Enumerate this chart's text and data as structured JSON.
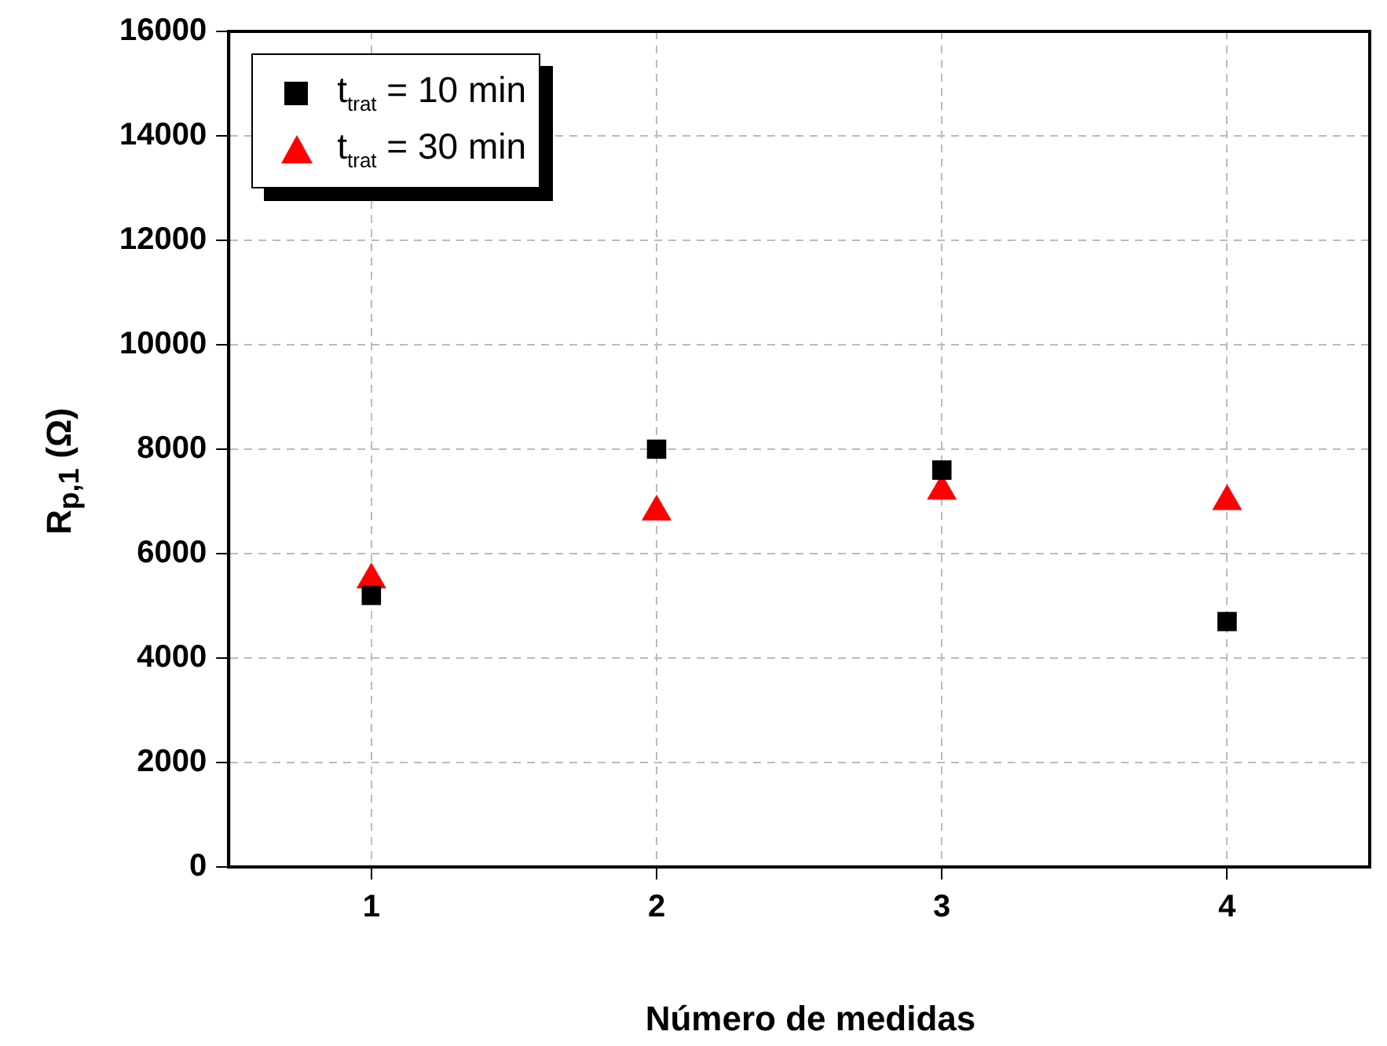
{
  "chart_data": {
    "type": "scatter",
    "xlabel": "Número de medidas",
    "ylabel": "R$_{p,1}$ (Ω)",
    "x": [
      1,
      2,
      3,
      4
    ],
    "series": [
      {
        "name": "t$_{trat}$ = 10 min",
        "color": "#000000",
        "marker": "square",
        "values": [
          5200,
          8000,
          7600,
          4700
        ]
      },
      {
        "name": "t$_{trat}$ = 30 min",
        "color": "#ff0000",
        "marker": "triangle",
        "values": [
          5500,
          6800,
          7200,
          7000
        ]
      }
    ],
    "xlim": [
      0.5,
      4.5
    ],
    "xticks": [
      1,
      2,
      3,
      4
    ],
    "ylim": [
      0,
      16000
    ],
    "yticks": [
      0,
      2000,
      4000,
      6000,
      8000,
      10000,
      12000,
      14000,
      16000
    ],
    "grid": true,
    "legend": "top left"
  }
}
